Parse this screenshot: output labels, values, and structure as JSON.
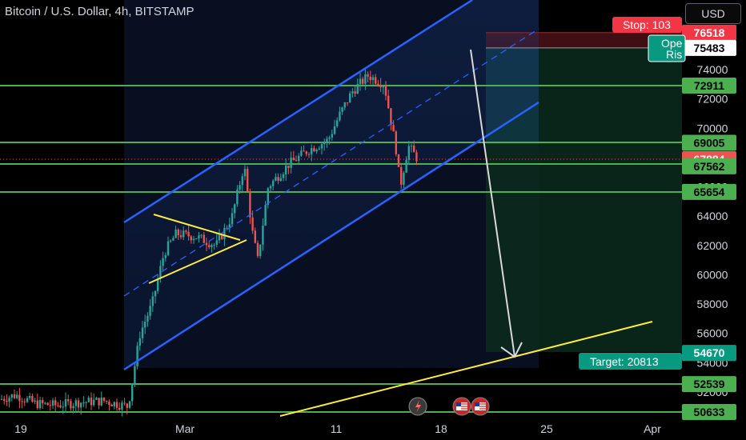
{
  "header": {
    "title": "Bitcoin / U.S. Dollar, 4h, BITSTAMP",
    "currency_button": "USD"
  },
  "chart_data": {
    "type": "candlestick",
    "symbol": "Bitcoin / U.S. Dollar",
    "interval": "4h",
    "exchange": "BITSTAMP",
    "ylim": [
      49600,
      77800
    ],
    "x_tick_labels": [
      "19",
      "Mar",
      "11",
      "18",
      "25",
      "Apr"
    ],
    "y_tick_labels": [
      52000,
      54000,
      56000,
      58000,
      60000,
      62000,
      64000,
      66000,
      68000,
      70000,
      72000,
      74000
    ],
    "last_price": 67884,
    "horizontal_levels": [
      76518,
      75483,
      72911,
      69005,
      67562,
      65654,
      54670,
      52539,
      50633
    ],
    "price_labels": [
      {
        "value": "76518",
        "kind": "stop"
      },
      {
        "value": "75483",
        "kind": "entry"
      },
      {
        "value": "72911",
        "kind": "level"
      },
      {
        "value": "69005",
        "kind": "level"
      },
      {
        "value": "67884",
        "kind": "last"
      },
      {
        "value": "67562",
        "kind": "level"
      },
      {
        "value": "65654",
        "kind": "level"
      },
      {
        "value": "54670",
        "kind": "target"
      },
      {
        "value": "52539",
        "kind": "level"
      },
      {
        "value": "50633",
        "kind": "level"
      }
    ],
    "position": {
      "side": "short",
      "entry": 75483,
      "stop": 76518,
      "target": 54670,
      "stop_label": "Stop: 103",
      "open_label": "Ope",
      "risk_label": "Ris",
      "target_label": "Target: 20813"
    },
    "colors": {
      "up": "#26a69a",
      "down": "#ef5350",
      "channel": "#2962ff",
      "level": "#4caf50",
      "trend": "#ffeb3b",
      "stop_zone": "#f23645",
      "target_zone": "#089981"
    }
  }
}
